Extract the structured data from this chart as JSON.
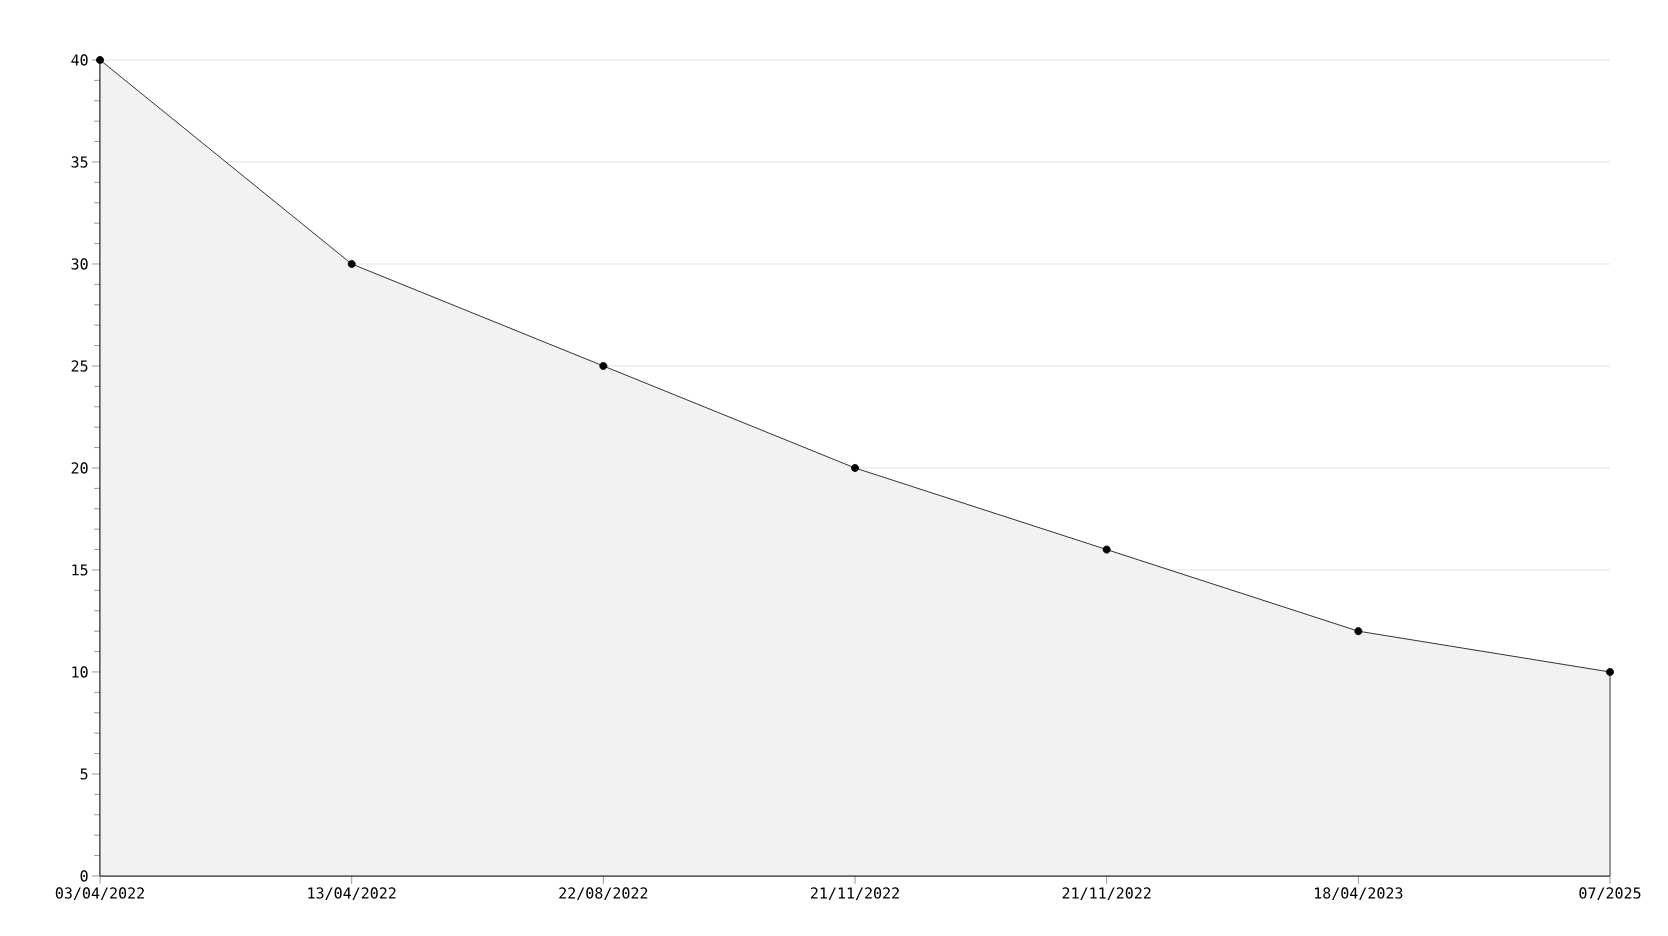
{
  "chart_data": {
    "type": "area",
    "categories": [
      "03/04/2022",
      "13/04/2022",
      "22/08/2022",
      "21/11/2022",
      "21/11/2022",
      "18/04/2023",
      "07/2025"
    ],
    "values": [
      40,
      30,
      25,
      20,
      16,
      12,
      10
    ],
    "color": "#f2f2f2",
    "ylim": [
      0,
      40
    ],
    "yticks": [
      0,
      5,
      10,
      15,
      20,
      25,
      30,
      35,
      40
    ],
    "grid": "y",
    "marker": "circle"
  }
}
